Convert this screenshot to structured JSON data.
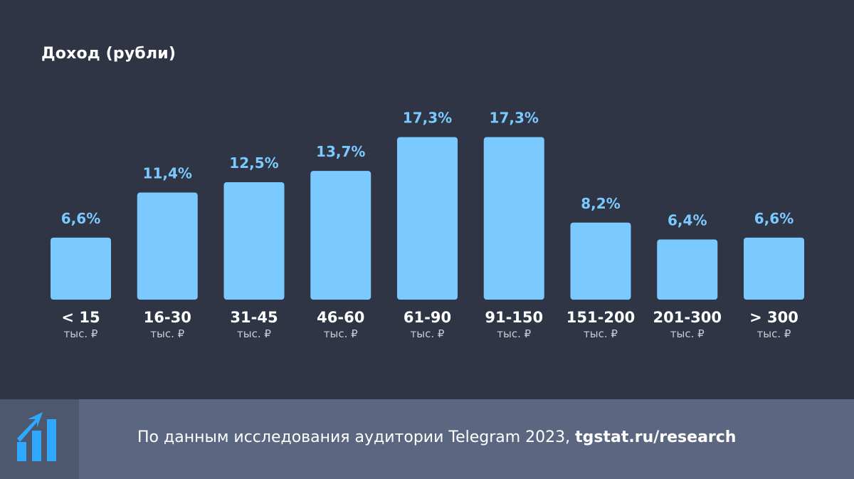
{
  "colors": {
    "background": "#2f3545",
    "bar": "#7bcaff",
    "value_label": "#7bcaff",
    "category_label": "#ffffff",
    "unit_label": "#c8ccd6",
    "footer_bg": "#5b6780",
    "logo_box_bg": "#4d586e",
    "logo_icon": "#2fa8ff"
  },
  "chart_data": {
    "type": "bar",
    "title": "Доход (рубли)",
    "xlabel": "",
    "ylabel": "",
    "categories": [
      "< 15",
      "16-30",
      "31-45",
      "46-60",
      "61-90",
      "91-150",
      "151-200",
      "201-300",
      "> 300"
    ],
    "units": [
      "тыс. ₽",
      "тыс. ₽",
      "тыс. ₽",
      "тыс. ₽",
      "тыс. ₽",
      "тыс. ₽",
      "тыс. ₽",
      "тыс. ₽",
      "тыс. ₽"
    ],
    "values": [
      6.6,
      11.4,
      12.5,
      13.7,
      17.3,
      17.3,
      8.2,
      6.4,
      6.6
    ],
    "value_labels": [
      "6,6%",
      "11,4%",
      "12,5%",
      "13,7%",
      "17,3%",
      "17,3%",
      "8,2%",
      "6,4%",
      "6,6%"
    ],
    "grid": false,
    "legend": "none"
  },
  "footer": {
    "source_text": "По данным исследования аудитории Telegram 2023, ",
    "source_link": "tgstat.ru/research",
    "logo_icon": "tgstat-logo-icon"
  }
}
